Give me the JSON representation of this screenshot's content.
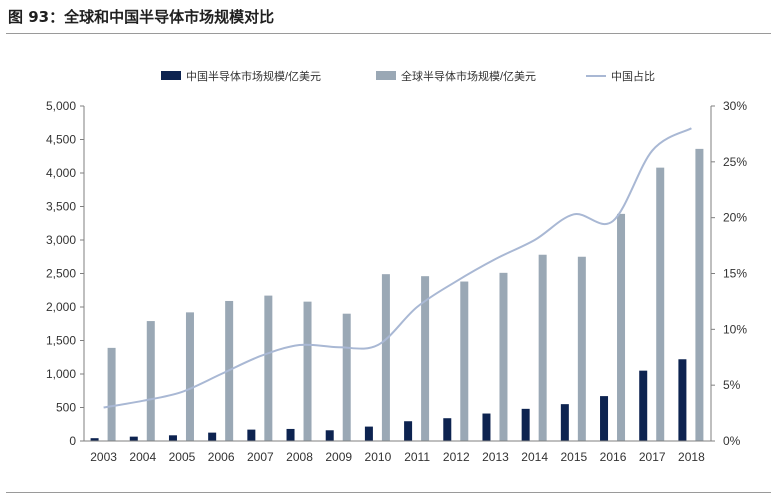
{
  "header": {
    "title": "图 93：全球和中国半导体市场规模对比"
  },
  "chart_data": {
    "type": "bar",
    "categories": [
      "2003",
      "2004",
      "2005",
      "2006",
      "2007",
      "2008",
      "2009",
      "2010",
      "2011",
      "2012",
      "2013",
      "2014",
      "2015",
      "2016",
      "2017",
      "2018"
    ],
    "series": [
      {
        "name": "中国半导体市场规模/亿美元",
        "type": "bar",
        "axis": "left",
        "color": "#0d2350",
        "values": [
          42,
          65,
          85,
          125,
          170,
          180,
          160,
          215,
          295,
          340,
          410,
          480,
          550,
          670,
          1050,
          1220
        ]
      },
      {
        "name": "全球半导体市场规模/亿美元",
        "type": "bar",
        "axis": "left",
        "color": "#9aa8b5",
        "values": [
          1390,
          1790,
          1920,
          2090,
          2170,
          2080,
          1900,
          2490,
          2460,
          2380,
          2510,
          2780,
          2750,
          3390,
          4080,
          4360
        ]
      },
      {
        "name": "中国占比",
        "type": "line",
        "axis": "right",
        "color": "#a9b8d4",
        "values": [
          0.03,
          0.036,
          0.044,
          0.06,
          0.076,
          0.086,
          0.084,
          0.086,
          0.12,
          0.143,
          0.163,
          0.18,
          0.203,
          0.197,
          0.26,
          0.28
        ]
      }
    ],
    "ylim": [
      0,
      5000
    ],
    "yticks": [
      "0",
      "500",
      "1,000",
      "1,500",
      "2,000",
      "2,500",
      "3,000",
      "3,500",
      "4,000",
      "4,500",
      "5,000"
    ],
    "y2lim": [
      0,
      0.3
    ],
    "y2ticks": [
      "0%",
      "5%",
      "10%",
      "15%",
      "20%",
      "25%",
      "30%"
    ],
    "legend_position": "top",
    "grid": false
  }
}
